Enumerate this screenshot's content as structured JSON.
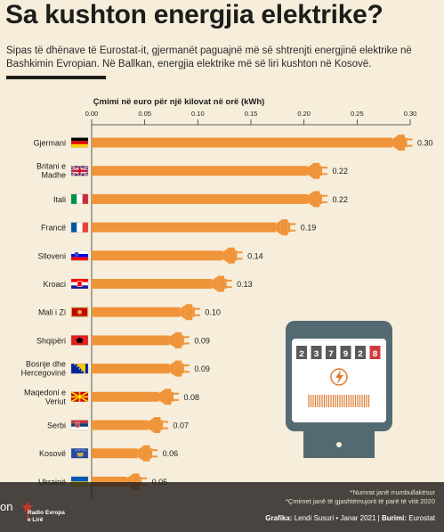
{
  "title": "Sa kushton energjia elektrike?",
  "subtitle": "Sipas të dhënave të Eurostat-it, gjermanët paguajnë më së shtrenjti energjinë elektrike në Bashkimin Evropian. Në Ballkan, energjia elektrike më së liri kushton në Kosovë.",
  "chart_data": {
    "type": "bar",
    "orientation": "horizontal",
    "title": "Çmimi në euro për një kilovat në orë (kWh)",
    "xlim": [
      0,
      0.3
    ],
    "ticks": [
      "0.00",
      "0.05",
      "0.10",
      "0.15",
      "0.20",
      "0.25",
      "0.30"
    ],
    "bar_color": "#f0943a",
    "categories": [
      {
        "label": [
          "Gjermani"
        ],
        "flag": "germany-flag"
      },
      {
        "label": [
          "Britani e",
          "Madhe"
        ],
        "flag": "uk-flag"
      },
      {
        "label": [
          "Itali"
        ],
        "flag": "italy-flag"
      },
      {
        "label": [
          "Francë"
        ],
        "flag": "france-flag"
      },
      {
        "label": [
          "Slloveni"
        ],
        "flag": "slovenia-flag"
      },
      {
        "label": [
          "Kroaci"
        ],
        "flag": "croatia-flag"
      },
      {
        "label": [
          "Mali i Zi"
        ],
        "flag": "montenegro-flag"
      },
      {
        "label": [
          "Shqipëri"
        ],
        "flag": "albania-flag"
      },
      {
        "label": [
          "Bosnje dhe",
          "Hercegovinë"
        ],
        "flag": "bosnia-flag"
      },
      {
        "label": [
          "Maqedoni e",
          "Veriut"
        ],
        "flag": "north-macedonia-flag"
      },
      {
        "label": [
          "Serbi"
        ],
        "flag": "serbia-flag"
      },
      {
        "label": [
          "Kosovë"
        ],
        "flag": "kosovo-flag"
      },
      {
        "label": [
          "Ukrainë"
        ],
        "flag": "ukraine-flag"
      }
    ],
    "values": [
      0.3,
      0.22,
      0.22,
      0.19,
      0.14,
      0.13,
      0.1,
      0.09,
      0.09,
      0.08,
      0.07,
      0.06,
      0.05
    ],
    "value_labels": [
      "0.30",
      "0.22",
      "0.22",
      "0.19",
      "0.14",
      "0.13",
      "0.10",
      "0.09",
      "0.09",
      "0.08",
      "0.07",
      "0.06",
      "0.05"
    ]
  },
  "meter": {
    "digits": [
      "2",
      "3",
      "7",
      "9",
      "2",
      "8"
    ],
    "icon": "lightning-icon"
  },
  "notes": {
    "line1": "*Numrat janë rrumbullakësur",
    "line2": "*Çmimet janë të gjashtëmujorit të parë të vitit 2020"
  },
  "credits": {
    "grafika_label": "Grafika:",
    "grafika_value": " Lendi Susuri • Janar 2021 | ",
    "burimi_label": "Burimi:",
    "burimi_value": " Eurostat"
  },
  "brand": {
    "fragment": "on",
    "logo_line1": "Radio Evropa",
    "logo_line2": "e Lirë"
  },
  "colors": {
    "background": "#f6eedb",
    "bar": "#f0943a",
    "text": "#1d1d1b",
    "meter_body": "#546a72"
  }
}
